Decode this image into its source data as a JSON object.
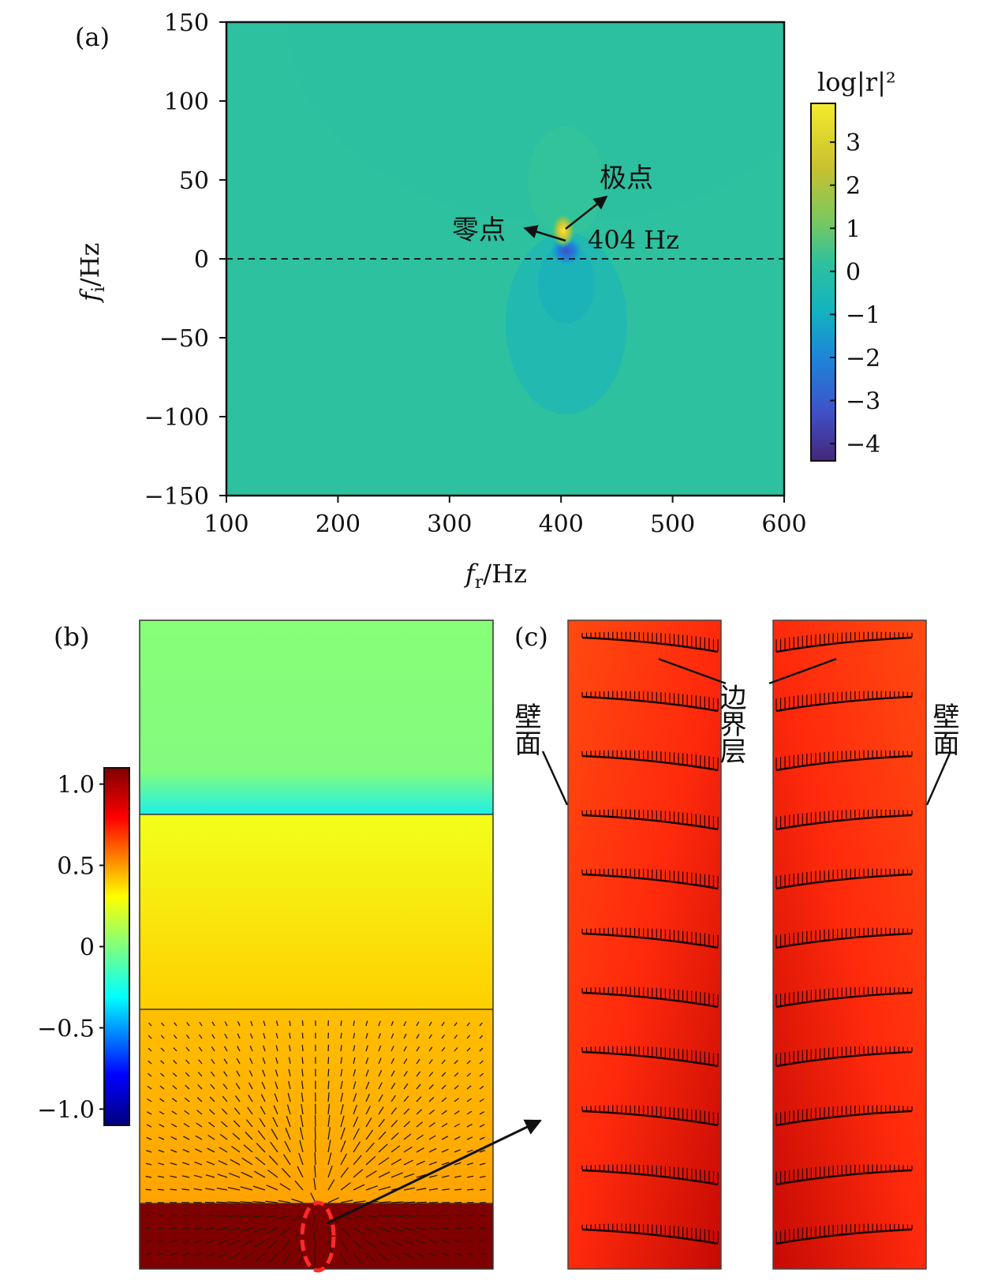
{
  "panel_a": {
    "label": "(a)",
    "chart_data": {
      "type": "heatmap",
      "xlabel_main": "f",
      "xlabel_sub": "r",
      "xlabel_unit": "/Hz",
      "ylabel_main": "f",
      "ylabel_sub": "i",
      "ylabel_unit": "/Hz",
      "xlim": [
        100,
        600
      ],
      "ylim": [
        -150,
        150
      ],
      "x_ticks": [
        100,
        200,
        300,
        400,
        500,
        600
      ],
      "y_ticks": [
        -150,
        -100,
        -50,
        0,
        50,
        100,
        150
      ],
      "x_tick_labels": [
        "100",
        "200",
        "300",
        "400",
        "500",
        "600"
      ],
      "y_tick_labels": [
        "−150",
        "−100",
        "−50",
        "0",
        "50",
        "100",
        "150"
      ],
      "zero_line_y": 0,
      "pole": {
        "fr": 404,
        "fi": 16
      },
      "zero": {
        "fr": 404,
        "fi": 12
      },
      "annotations": {
        "pole_label": "极点",
        "zero_label": "零点",
        "freq_label": "404 Hz"
      },
      "colorbar": {
        "title": "log|r|²",
        "range": [
          -4.4,
          3.9
        ],
        "ticks": [
          3,
          2,
          1,
          0,
          -1,
          -2,
          -3,
          -4
        ],
        "tick_labels": [
          "3",
          "2",
          "1",
          "0",
          "−1",
          "−2",
          "−3",
          "−4"
        ],
        "colors": [
          "#45277a",
          "#3f52c9",
          "#1f82d9",
          "#13b3c0",
          "#2dc19f",
          "#7ec85b",
          "#c8c12f",
          "#f5ea2c"
        ]
      }
    }
  },
  "panel_b": {
    "label": "(b)",
    "chart_data": {
      "type": "heatmap",
      "colorbar": {
        "range": [
          -1.1,
          1.1
        ],
        "ticks": [
          1.0,
          0.5,
          0,
          -0.5,
          -1.0
        ],
        "tick_labels": [
          "1.0",
          "0.5",
          "0",
          "−0.5",
          "−1.0"
        ],
        "colors": [
          "#00007f",
          "#0000ff",
          "#00ffff",
          "#ffff00",
          "#ff0000",
          "#7f0000"
        ]
      }
    }
  },
  "panel_c": {
    "label": "(c)",
    "wall_left": "壁面",
    "wall_right": "壁面",
    "boundary_layer": "边界层"
  }
}
